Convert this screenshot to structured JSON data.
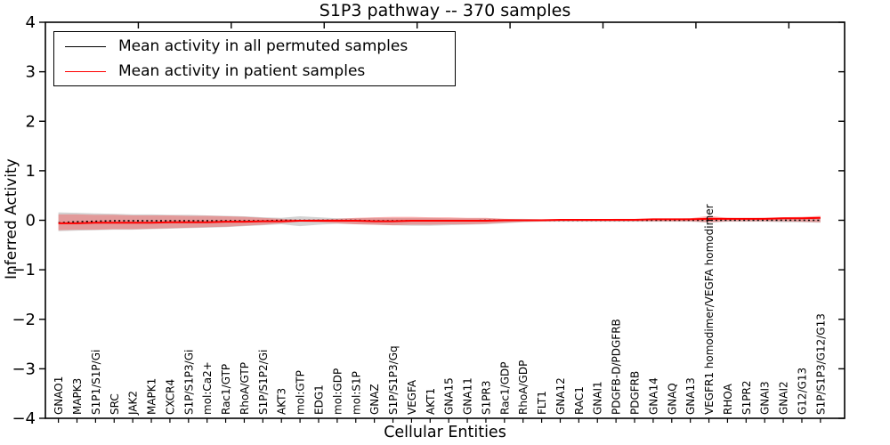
{
  "figure": {
    "background": "#ffffff"
  },
  "chart_data": {
    "type": "line",
    "title": "S1P3 pathway -- 370 samples",
    "xlabel": "Cellular Entities",
    "ylabel": "Inferred Activity",
    "ylim": [
      -4,
      4
    ],
    "xlim": [
      0,
      43
    ],
    "yticks": [
      4,
      3,
      2,
      1,
      0,
      -1,
      -2,
      -3,
      -4
    ],
    "xticks": [
      5,
      10,
      15,
      20,
      25,
      30,
      35,
      40
    ],
    "x_first_point": 0.7,
    "grid": false,
    "legend_position": "upper left",
    "categories": [
      "GNAO1",
      "MAPK3",
      "S1P1/S1P/Gi",
      "SRC",
      "JAK2",
      "MAPK1",
      "CXCR4",
      "S1P/S1P3/Gi",
      "mol:Ca2+",
      "Rac1/GTP",
      "RhoA/GTP",
      "S1P/S1P2/Gi",
      "AKT3",
      "mol:GTP",
      "EDG1",
      "mol:GDP",
      "mol:S1P",
      "GNAZ",
      "S1P/S1P3/Gq",
      "VEGFA",
      "AKT1",
      "GNA15",
      "GNA11",
      "S1PR3",
      "Rac1/GDP",
      "RhoA/GDP",
      "FLT1",
      "GNA12",
      "RAC1",
      "GNAI1",
      "PDGFB-D/PDGFRB",
      "PDGFRB",
      "GNA14",
      "GNAQ",
      "GNA13",
      "VEGFR1 homodimer/VEGFA homodimer",
      "RHOA",
      "S1PR2",
      "GNAI3",
      "GNAI2",
      "G12/G13",
      "S1P/S1P3/G12/G13"
    ],
    "series": [
      {
        "name": "Mean activity in all permuted samples",
        "color": "#000000",
        "linestyle": "dotted",
        "values": [
          -0.05,
          -0.03,
          -0.02,
          -0.01,
          -0.01,
          -0.01,
          -0.01,
          -0.01,
          -0.01,
          -0.01,
          -0.01,
          -0.01,
          0,
          0,
          0,
          0,
          0,
          -0.01,
          -0.01,
          -0.01,
          -0.01,
          -0.01,
          -0.01,
          0,
          0,
          0,
          0,
          0,
          0,
          0,
          0,
          0,
          0,
          0,
          0,
          0,
          0,
          0,
          0,
          0,
          0,
          0
        ]
      },
      {
        "name": "Mean activity in patient samples",
        "color": "#ff0000",
        "linestyle": "solid",
        "values": [
          -0.06,
          -0.06,
          -0.05,
          -0.05,
          -0.05,
          -0.05,
          -0.04,
          -0.04,
          -0.04,
          -0.03,
          -0.03,
          -0.02,
          -0.02,
          -0.01,
          -0.01,
          -0.01,
          -0.01,
          -0.02,
          -0.02,
          -0.01,
          -0.01,
          -0.01,
          -0.01,
          -0.01,
          0,
          0,
          0,
          0.01,
          0.01,
          0.01,
          0.01,
          0.01,
          0.02,
          0.02,
          0.02,
          0.03,
          0.03,
          0.03,
          0.03,
          0.04,
          0.04,
          0.05
        ]
      }
    ],
    "bands": [
      {
        "name": "permuted-samples-band",
        "color": "rgba(150,150,150,0.42)",
        "upper": [
          0.16,
          0.15,
          0.14,
          0.13,
          0.12,
          0.12,
          0.11,
          0.11,
          0.1,
          0.09,
          0.08,
          0.06,
          0.05,
          0.08,
          0.06,
          0.04,
          0.04,
          0.05,
          0.05,
          0.05,
          0.05,
          0.04,
          0.04,
          0.04,
          0.03,
          0.03,
          0.02,
          0.02,
          0.02,
          0.02,
          0.02,
          0.02,
          0.02,
          0.02,
          0.02,
          0.06,
          0.03,
          0.03,
          0.03,
          0.03,
          0.04,
          0.05
        ],
        "lower": [
          -0.22,
          -0.21,
          -0.2,
          -0.19,
          -0.19,
          -0.18,
          -0.17,
          -0.16,
          -0.15,
          -0.14,
          -0.12,
          -0.1,
          -0.08,
          -0.12,
          -0.09,
          -0.07,
          -0.08,
          -0.09,
          -0.1,
          -0.11,
          -0.11,
          -0.1,
          -0.09,
          -0.08,
          -0.06,
          -0.04,
          -0.03,
          -0.03,
          -0.03,
          -0.03,
          -0.03,
          -0.03,
          -0.03,
          -0.03,
          -0.03,
          -0.05,
          -0.03,
          -0.03,
          -0.03,
          -0.04,
          -0.04,
          -0.05
        ]
      },
      {
        "name": "patient-samples-band",
        "color": "rgba(255,45,45,0.34)",
        "upper": [
          0.12,
          0.12,
          0.11,
          0.11,
          0.1,
          0.1,
          0.1,
          0.09,
          0.09,
          0.08,
          0.07,
          0.05,
          0.03,
          0.01,
          0.02,
          0.03,
          0.05,
          0.06,
          0.07,
          0.07,
          0.06,
          0.06,
          0.05,
          0.05,
          0.03,
          0.02,
          0.02,
          0.02,
          0.02,
          0.02,
          0.03,
          0.03,
          0.03,
          0.03,
          0.04,
          0.09,
          0.05,
          0.04,
          0.05,
          0.06,
          0.07,
          0.09
        ],
        "lower": [
          -0.2,
          -0.19,
          -0.19,
          -0.18,
          -0.18,
          -0.17,
          -0.16,
          -0.15,
          -0.14,
          -0.13,
          -0.11,
          -0.09,
          -0.06,
          -0.03,
          -0.04,
          -0.06,
          -0.08,
          -0.09,
          -0.1,
          -0.09,
          -0.09,
          -0.08,
          -0.08,
          -0.07,
          -0.05,
          -0.03,
          -0.02,
          -0.02,
          -0.02,
          -0.02,
          -0.02,
          -0.02,
          -0.02,
          -0.02,
          -0.02,
          -0.04,
          -0.02,
          -0.02,
          -0.02,
          -0.02,
          -0.03,
          -0.04
        ]
      }
    ]
  },
  "legend": {
    "items": [
      {
        "label": "Mean activity in all permuted samples",
        "color": "#000000"
      },
      {
        "label": "Mean activity in patient samples",
        "color": "#ff0000"
      }
    ]
  }
}
